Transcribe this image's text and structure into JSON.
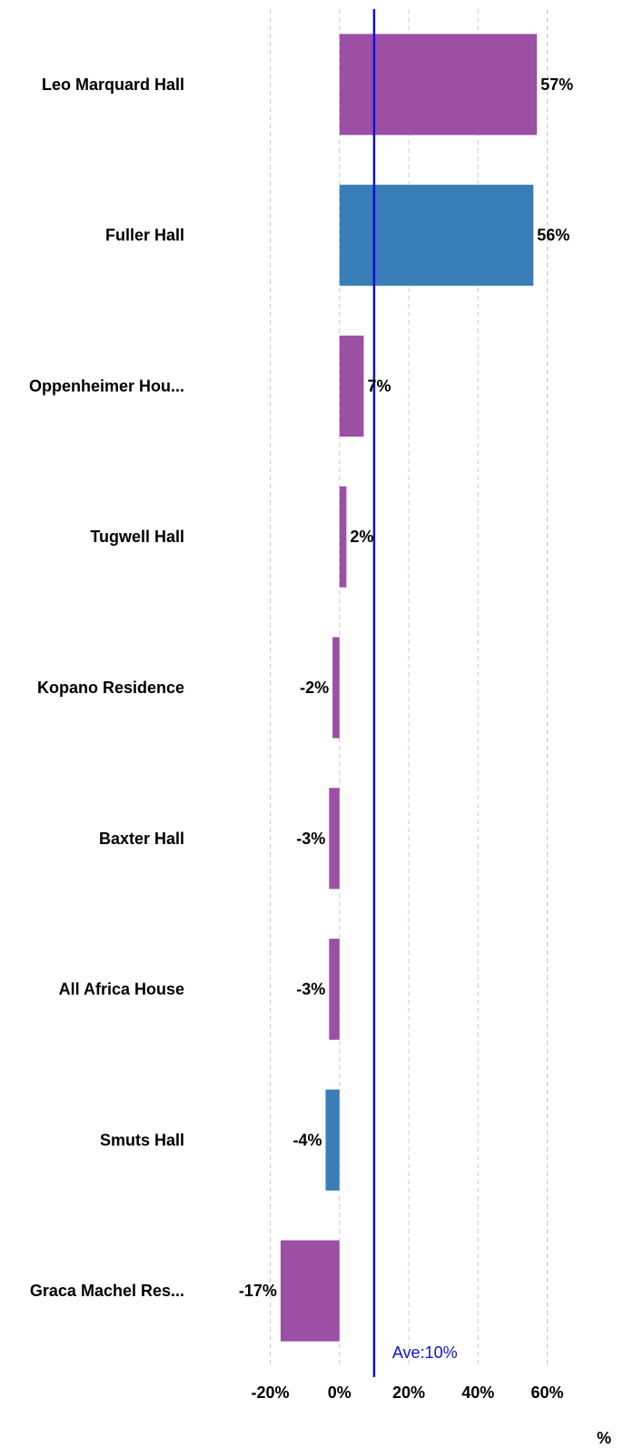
{
  "chart_data": {
    "type": "bar",
    "orientation": "horizontal",
    "categories": [
      "Leo Marquard Hall",
      "Fuller Hall",
      "Oppenheimer Hou...",
      "Tugwell Hall",
      "Kopano Residence",
      "Baxter Hall",
      "All Africa House",
      "Smuts Hall",
      "Graca Machel Res..."
    ],
    "values": [
      57,
      56,
      7,
      2,
      -2,
      -3,
      -3,
      -4,
      -17
    ],
    "value_labels": [
      "57%",
      "56%",
      "7%",
      "2%",
      "-2%",
      "-3%",
      "-3%",
      "-4%",
      "-17%"
    ],
    "bar_colors": [
      "#9b4fa5",
      "#3a7eb8",
      "#9b4fa5",
      "#9b4fa5",
      "#9b4fa5",
      "#9b4fa5",
      "#9b4fa5",
      "#3a7eb8",
      "#9b4fa5"
    ],
    "xlim": [
      -20,
      60
    ],
    "x_ticks": [
      -20,
      0,
      20,
      40,
      60
    ],
    "x_tick_labels": [
      "-20%",
      "0%",
      "20%",
      "40%",
      "60%"
    ],
    "xlabel": "%",
    "grid": true,
    "reference_line": {
      "value": 10,
      "label": "Ave:10%",
      "color": "#1010d0"
    },
    "colors": {
      "purple": "#9b4fa5",
      "blue": "#3a7eb8",
      "grid": "#cccccc",
      "average": "#1010d0"
    }
  }
}
